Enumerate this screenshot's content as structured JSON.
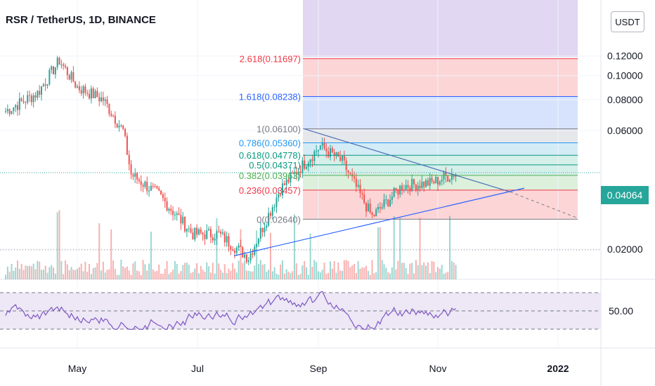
{
  "title": "RSR / TetherUS, 1D, BINANCE",
  "currency": "USDT",
  "last_price": "0.04064",
  "price_axis": [
    "0.12000",
    "0.10000",
    "0.08000",
    "0.06000",
    "0.02000"
  ],
  "rsi_axis": [
    "50.00"
  ],
  "time_axis": [
    "May",
    "Jul",
    "Sep",
    "Nov",
    "2022"
  ],
  "fib_levels": [
    {
      "label": "2.618(0.11697)",
      "color": "#f23645"
    },
    {
      "label": "1.618(0.08238)",
      "color": "#2962ff"
    },
    {
      "label": "1(0.06100)",
      "color": "#787b86"
    },
    {
      "label": "0.786(0.05360)",
      "color": "#2196f3"
    },
    {
      "label": "0.618(0.04778)",
      "color": "#089981"
    },
    {
      "label": "0.5(0.04371)",
      "color": "#089981"
    },
    {
      "label": "0.382(0.03963)",
      "color": "#4caf50"
    },
    {
      "label": "0.236(0.03457)",
      "color": "#f23645"
    },
    {
      "label": "0(0.02640)",
      "color": "#787b86"
    }
  ],
  "colors": {
    "up": "#26a69a",
    "down": "#ef5350",
    "rsi": "#7e57c2",
    "trend": "#2962ff"
  },
  "chart_data": {
    "type": "candlestick",
    "title": "RSR / TetherUS, 1D, BINANCE",
    "y_scale": "log",
    "x_ticks": [
      "May",
      "Jul",
      "Sep",
      "Nov",
      "2022"
    ],
    "y_ticks": [
      0.02,
      0.06,
      0.08,
      0.1,
      0.12
    ],
    "last_price": 0.04064,
    "close_series_approx": [
      {
        "date": "2021-03-20",
        "close": 0.072
      },
      {
        "date": "2021-04-05",
        "close": 0.085
      },
      {
        "date": "2021-04-16",
        "close": 0.115
      },
      {
        "date": "2021-04-25",
        "close": 0.09
      },
      {
        "date": "2021-05-08",
        "close": 0.08
      },
      {
        "date": "2021-05-18",
        "close": 0.06
      },
      {
        "date": "2021-05-22",
        "close": 0.04
      },
      {
        "date": "2021-06-05",
        "close": 0.033
      },
      {
        "date": "2021-06-22",
        "close": 0.023
      },
      {
        "date": "2021-07-05",
        "close": 0.023
      },
      {
        "date": "2021-07-20",
        "close": 0.0185
      },
      {
        "date": "2021-08-05",
        "close": 0.035
      },
      {
        "date": "2021-08-25",
        "close": 0.052
      },
      {
        "date": "2021-09-05",
        "close": 0.045
      },
      {
        "date": "2021-09-20",
        "close": 0.027
      },
      {
        "date": "2021-10-05",
        "close": 0.036
      },
      {
        "date": "2021-10-20",
        "close": 0.037
      },
      {
        "date": "2021-11-01",
        "close": 0.04064
      }
    ],
    "fib_retracement": [
      {
        "ratio": 2.618,
        "price": 0.11697
      },
      {
        "ratio": 1.618,
        "price": 0.08238
      },
      {
        "ratio": 1,
        "price": 0.061
      },
      {
        "ratio": 0.786,
        "price": 0.0536
      },
      {
        "ratio": 0.618,
        "price": 0.04778
      },
      {
        "ratio": 0.5,
        "price": 0.04371
      },
      {
        "ratio": 0.382,
        "price": 0.03963
      },
      {
        "ratio": 0.236,
        "price": 0.03457
      },
      {
        "ratio": 0,
        "price": 0.0264
      }
    ],
    "rsi": {
      "level_mid": 50
    }
  }
}
